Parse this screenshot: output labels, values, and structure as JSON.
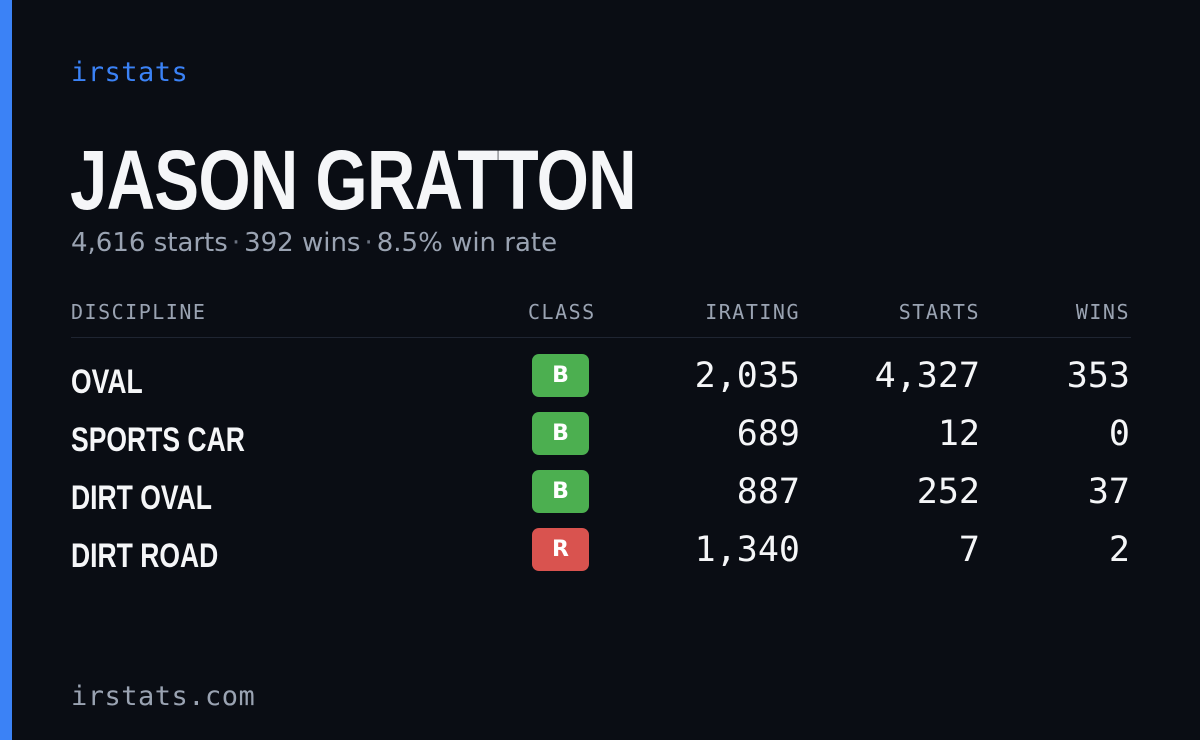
{
  "brand": "irstats",
  "driver": {
    "name": "JASON GRATTON",
    "starts": "4,616 starts",
    "wins": "392 wins",
    "win_rate": "8.5% win rate",
    "separator": "·"
  },
  "table": {
    "headers": {
      "discipline": "DISCIPLINE",
      "class": "CLASS",
      "irating": "IRATING",
      "starts": "STARTS",
      "wins": "WINS"
    },
    "rows": [
      {
        "discipline": "OVAL",
        "class": "B",
        "class_color": "#4caf50",
        "irating": "2,035",
        "starts": "4,327",
        "wins": "353"
      },
      {
        "discipline": "SPORTS CAR",
        "class": "B",
        "class_color": "#4caf50",
        "irating": "689",
        "starts": "12",
        "wins": "0"
      },
      {
        "discipline": "DIRT OVAL",
        "class": "B",
        "class_color": "#4caf50",
        "irating": "887",
        "starts": "252",
        "wins": "37"
      },
      {
        "discipline": "DIRT ROAD",
        "class": "R",
        "class_color": "#d9534f",
        "irating": "1,340",
        "starts": "7",
        "wins": "2"
      }
    ]
  },
  "footer": "irstats.com",
  "colors": {
    "accent": "#3b82f6",
    "background": "#0a0d14",
    "muted": "#9aa3b2"
  }
}
